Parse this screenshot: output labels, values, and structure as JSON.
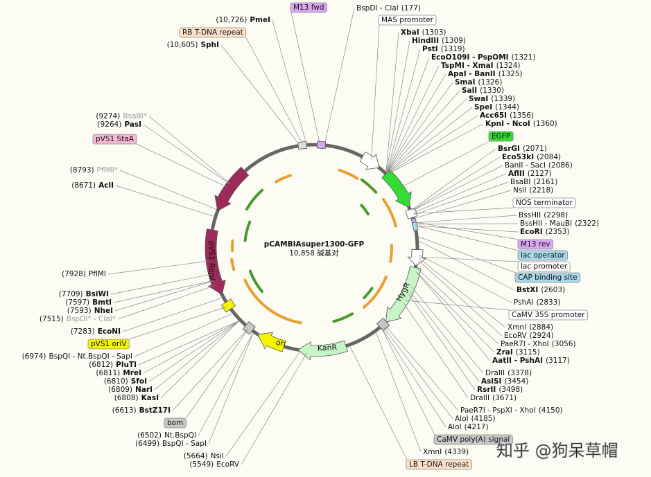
{
  "title": "pCAMBIAsuper1300-GFP",
  "length": 10858,
  "length_label": "10,858 碱基对",
  "sites": [
    {
      "name": "BspDI - ClaI",
      "position": 177,
      "position_label": "(177)",
      "style": "normal"
    },
    {
      "name": "XbaI",
      "position": 1303,
      "position_label": "(1303)",
      "style": "bold"
    },
    {
      "name": "HindIII",
      "position": 1309,
      "position_label": "(1309)",
      "style": "bold"
    },
    {
      "name": "PstI",
      "position": 1319,
      "position_label": "(1319)",
      "style": "bold"
    },
    {
      "name": "EcoO109I - PspOMI",
      "position": 1321,
      "position_label": "(1321)",
      "style": "bold"
    },
    {
      "name": "TspMI - XmaI",
      "position": 1324,
      "position_label": "(1324)",
      "style": "bold"
    },
    {
      "name": "ApaI - BanII",
      "position": 1325,
      "position_label": "(1325)",
      "style": "bold"
    },
    {
      "name": "SmaI",
      "position": 1326,
      "position_label": "(1326)",
      "style": "bold"
    },
    {
      "name": "SalI",
      "position": 1330,
      "position_label": "(1330)",
      "style": "bold"
    },
    {
      "name": "SwaI",
      "position": 1339,
      "position_label": "(1339)",
      "style": "bold"
    },
    {
      "name": "SpeI",
      "position": 1344,
      "position_label": "(1344)",
      "style": "bold"
    },
    {
      "name": "Acc65I",
      "position": 1356,
      "position_label": "(1356)",
      "style": "bold"
    },
    {
      "name": "KpnI - NcoI",
      "position": 1360,
      "position_label": "(1360)",
      "style": "bold"
    },
    {
      "name": "BsrGI",
      "position": 2071,
      "position_label": "(2071)",
      "style": "bold"
    },
    {
      "name": "Eco53kI",
      "position": 2084,
      "position_label": "(2084)",
      "style": "bold"
    },
    {
      "name": "BanII - SacI",
      "position": 2086,
      "position_label": "(2086)",
      "style": "normal"
    },
    {
      "name": "AflII",
      "position": 2127,
      "position_label": "(2127)",
      "style": "bold"
    },
    {
      "name": "BsaBI",
      "position": 2161,
      "position_label": "(2161)",
      "style": "normal"
    },
    {
      "name": "NsiI",
      "position": 2218,
      "position_label": "(2218)",
      "style": "normal"
    },
    {
      "name": "BssHII",
      "position": 2298,
      "position_label": "(2298)",
      "style": "normal"
    },
    {
      "name": "BssHII - MauBI",
      "position": 2322,
      "position_label": "(2322)",
      "style": "normal"
    },
    {
      "name": "EcoRI",
      "position": 2353,
      "position_label": "(2353)",
      "style": "bold"
    },
    {
      "name": "BstXI",
      "position": 2603,
      "position_label": "(2603)",
      "style": "bold"
    },
    {
      "name": "PshAI",
      "position": 2833,
      "position_label": "(2833)",
      "style": "normal"
    },
    {
      "name": "XmnI",
      "position": 2884,
      "position_label": "(2884)",
      "style": "normal"
    },
    {
      "name": "EcoRV",
      "position": 2924,
      "position_label": "(2924)",
      "style": "normal"
    },
    {
      "name": "PaeR7I - XhoI",
      "position": 3056,
      "position_label": "(3056)",
      "style": "normal"
    },
    {
      "name": "ZraI",
      "position": 3115,
      "position_label": "(3115)",
      "style": "bold"
    },
    {
      "name": "AatII - PshAI",
      "position": 3117,
      "position_label": "(3117)",
      "style": "bold"
    },
    {
      "name": "DraIII",
      "position": 3378,
      "position_label": "(3378)",
      "style": "normal"
    },
    {
      "name": "AsiSI",
      "position": 3454,
      "position_label": "(3454)",
      "style": "bold"
    },
    {
      "name": "RsrII",
      "position": 3498,
      "position_label": "(3498)",
      "style": "bold"
    },
    {
      "name": "DraIII",
      "position": 3671,
      "position_label": "(3671)",
      "style": "normal"
    },
    {
      "name": "PaeR7I - PspXI - XhoI",
      "position": 4150,
      "position_label": "(4150)",
      "style": "normal"
    },
    {
      "name": "AloI",
      "position": 4185,
      "position_label": "(4185)",
      "style": "normal"
    },
    {
      "name": "AloI",
      "position": 4217,
      "position_label": "(4217)",
      "style": "normal"
    },
    {
      "name": "XmnI",
      "position": 4339,
      "position_label": "(4339)",
      "style": "normal"
    },
    {
      "name": "PmeI",
      "position": 10726,
      "position_label": "(10,726)",
      "style": "bold"
    },
    {
      "name": "SphI",
      "position": 10605,
      "position_label": "(10,605)",
      "style": "bold"
    },
    {
      "name": "BsaBI*",
      "position": 9274,
      "position_label": "(9274)",
      "style": "gray"
    },
    {
      "name": "PasI",
      "position": 9264,
      "position_label": "(9264)",
      "style": "bold"
    },
    {
      "name": "PflMI*",
      "position": 8793,
      "position_label": "(8793)",
      "style": "gray"
    },
    {
      "name": "AclI",
      "position": 8671,
      "position_label": "(8671)",
      "style": "bold"
    },
    {
      "name": "PflMI",
      "position": 7928,
      "position_label": "(7928)",
      "style": "normal"
    },
    {
      "name": "BsiWI",
      "position": 7709,
      "position_label": "(7709)",
      "style": "bold"
    },
    {
      "name": "BmtI",
      "position": 7597,
      "position_label": "(7597)",
      "style": "bold"
    },
    {
      "name": "NheI",
      "position": 7593,
      "position_label": "(7593)",
      "style": "bold"
    },
    {
      "name": "BspDI* - ClaI*",
      "position": 7515,
      "position_label": "(7515)",
      "style": "gray"
    },
    {
      "name": "EcoNI",
      "position": 7283,
      "position_label": "(7283)",
      "style": "bold"
    },
    {
      "name": "BspQI - Nt.BspQI - SapI",
      "position": 6974,
      "position_label": "(6974)",
      "style": "normal"
    },
    {
      "name": "PluTI",
      "position": 6812,
      "position_label": "(6812)",
      "style": "bold"
    },
    {
      "name": "MreI",
      "position": 6811,
      "position_label": "(6811)",
      "style": "bold"
    },
    {
      "name": "SfoI",
      "position": 6810,
      "position_label": "(6810)",
      "style": "bold"
    },
    {
      "name": "NarI",
      "position": 6809,
      "position_label": "(6809)",
      "style": "bold"
    },
    {
      "name": "KasI",
      "position": 6808,
      "position_label": "(6808)",
      "style": "bold"
    },
    {
      "name": "BstZ17I",
      "position": 6613,
      "position_label": "(6613)",
      "style": "bold"
    },
    {
      "name": "Nt.BspQI",
      "position": 6502,
      "position_label": "(6502)",
      "style": "normal"
    },
    {
      "name": "BspQI - SapI",
      "position": 6499,
      "position_label": "(6499)",
      "style": "normal"
    },
    {
      "name": "NsiI",
      "position": 5664,
      "position_label": "(5664)",
      "style": "normal"
    },
    {
      "name": "EcoRV",
      "position": 5549,
      "position_label": "(5549)",
      "style": "normal"
    }
  ],
  "features": [
    {
      "label": "M13 fwd",
      "color": "#d9a8f5"
    },
    {
      "label": "RB T-DNA repeat",
      "color": "#fde2c8"
    },
    {
      "label": "MAS promoter",
      "color": "#ffffff"
    },
    {
      "label": "pVS1 StaA",
      "color": "#f5b9d2"
    },
    {
      "label": "EGFP",
      "color": "#33dd33"
    },
    {
      "label": "NOS terminator",
      "color": "#ffffff"
    },
    {
      "label": "M13 rev",
      "color": "#d9a8f5"
    },
    {
      "label": "lac operator",
      "color": "#a8d8ea"
    },
    {
      "label": "lac promoter",
      "color": "#ffffff"
    },
    {
      "label": "CAP binding site",
      "color": "#a8d8ea"
    },
    {
      "label": "CaMV 35S promoter",
      "color": "#ffffff"
    },
    {
      "label": "pVS1 oriV",
      "color": "#f5f500"
    },
    {
      "label": "bom",
      "color": "#c8c8c8"
    },
    {
      "label": "CaMV poly(A) signal",
      "color": "#c8c8c8"
    },
    {
      "label": "LB T-DNA repeat",
      "color": "#fde2c8"
    }
  ],
  "arc_features": [
    {
      "label": "pVS1 RepA",
      "color": "#9c2a5a"
    },
    {
      "label": "HygR",
      "color": "#c8f5c8"
    },
    {
      "label": "KanR",
      "color": "#c8f5c8"
    },
    {
      "label": "ori",
      "color": "#f5f500"
    }
  ],
  "watermark": "知乎 @狗呆草帽"
}
